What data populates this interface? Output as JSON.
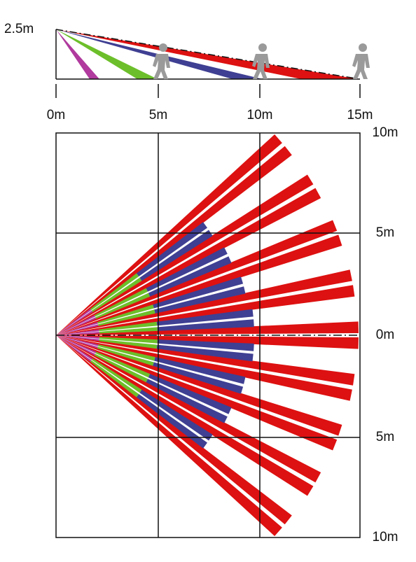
{
  "side_view": {
    "height_label": "2.5m",
    "distance_labels": [
      "0m",
      "5m",
      "10m",
      "15m"
    ]
  },
  "top_view": {
    "lateral_labels": [
      "10m",
      "5m",
      "0m",
      "5m",
      "10m"
    ]
  }
}
